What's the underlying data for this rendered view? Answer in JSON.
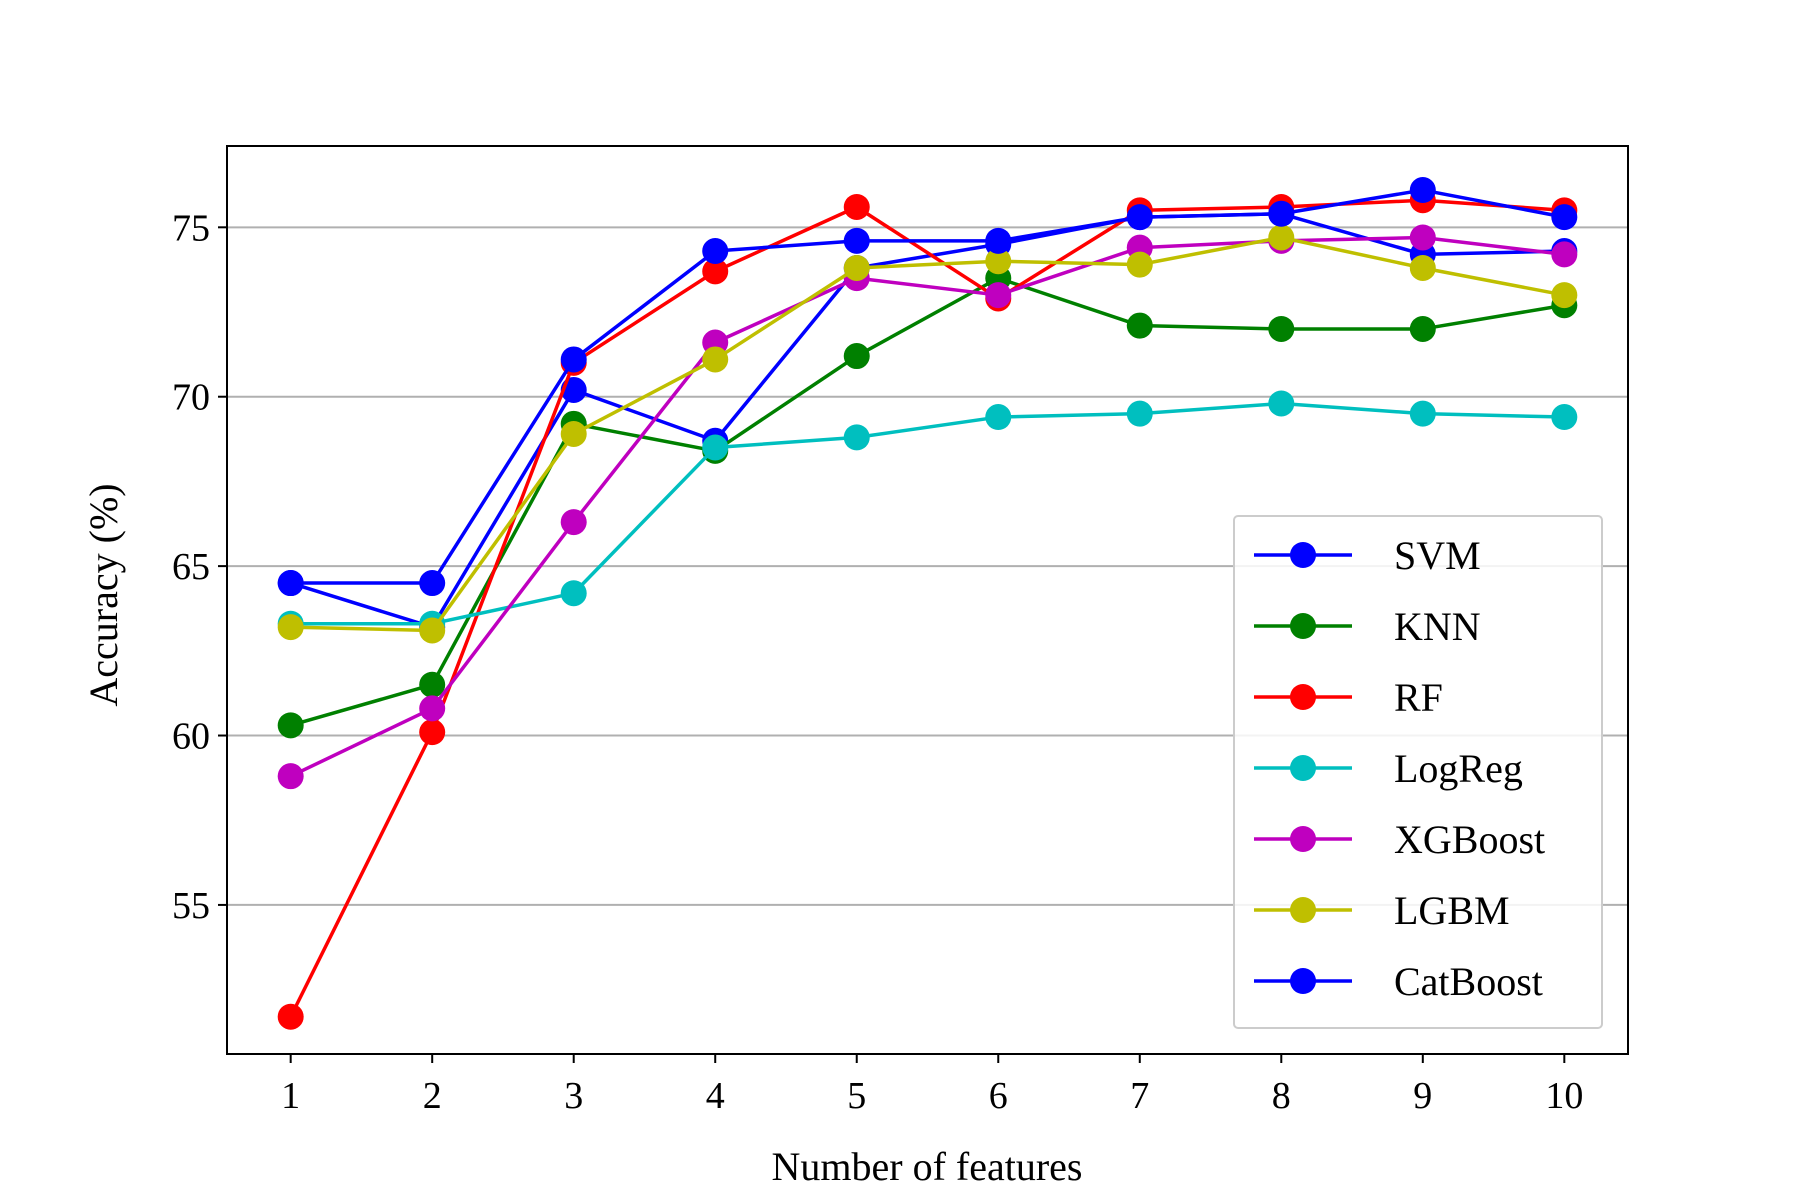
{
  "chart_data": {
    "type": "line",
    "title": "",
    "xlabel": "Number of features",
    "ylabel": "Accuracy (%)",
    "x": [
      1,
      2,
      3,
      4,
      5,
      6,
      7,
      8,
      9,
      10
    ],
    "xlim": [
      0.55,
      10.45
    ],
    "ylim": [
      50.6,
      77.4
    ],
    "yticks": [
      55,
      60,
      65,
      70,
      75
    ],
    "grid": "horizontal",
    "legend_position": "lower-right",
    "series": [
      {
        "name": "SVM",
        "color": "#0000ff",
        "values": [
          64.5,
          63.2,
          70.2,
          68.7,
          73.8,
          74.5,
          75.3,
          75.4,
          74.2,
          74.3
        ]
      },
      {
        "name": "KNN",
        "color": "#008000",
        "values": [
          60.3,
          61.5,
          69.2,
          68.4,
          71.2,
          73.5,
          72.1,
          72.0,
          72.0,
          72.7
        ]
      },
      {
        "name": "RF",
        "color": "#ff0000",
        "values": [
          51.7,
          60.1,
          71.0,
          73.7,
          75.6,
          72.9,
          75.5,
          75.6,
          75.8,
          75.5
        ]
      },
      {
        "name": "LogReg",
        "color": "#00bfbf",
        "values": [
          63.3,
          63.3,
          64.2,
          68.5,
          68.8,
          69.4,
          69.5,
          69.8,
          69.5,
          69.4
        ]
      },
      {
        "name": "XGBoost",
        "color": "#bf00bf",
        "values": [
          58.8,
          60.8,
          66.3,
          71.6,
          73.5,
          73.0,
          74.4,
          74.6,
          74.7,
          74.2
        ]
      },
      {
        "name": "LGBM",
        "color": "#bfbf00",
        "values": [
          63.2,
          63.1,
          68.9,
          71.1,
          73.8,
          74.0,
          73.9,
          74.7,
          73.8,
          73.0
        ]
      },
      {
        "name": "CatBoost",
        "color": "#0000ff",
        "values": [
          64.5,
          64.5,
          71.1,
          74.3,
          74.6,
          74.6,
          75.3,
          75.4,
          76.1,
          75.3
        ]
      }
    ]
  }
}
